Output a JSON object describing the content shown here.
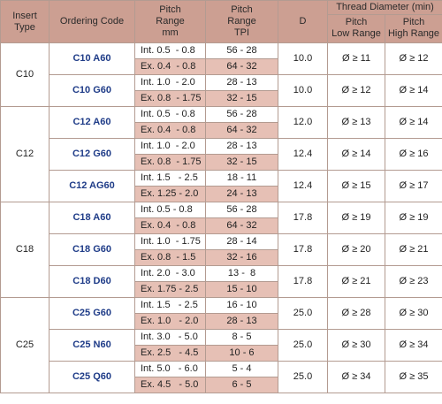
{
  "headers": {
    "insert_type": [
      "Insert",
      "Type"
    ],
    "ordering_code": "Ordering Code",
    "pitch_range": [
      "Pitch",
      "Range",
      "mm"
    ],
    "pitch_tpi": [
      "Pitch",
      "Range",
      "TPI"
    ],
    "d": "D",
    "thread_diameter": "Thread Diameter (min)",
    "pitch_low": [
      "Pitch",
      "Low Range"
    ],
    "pitch_high": [
      "Pitch",
      "High Range"
    ]
  },
  "groups": [
    {
      "type": "C10",
      "rows": [
        {
          "code": "C10 A60",
          "d": "10.0",
          "low": "Ø ≥ 11",
          "high": "Ø ≥ 12",
          "int": {
            "mm": "Int. 0.5  - 0.8",
            "tpi": "56 - 28"
          },
          "ex": {
            "mm": "Ex. 0.4  - 0.8",
            "tpi": "64 - 32"
          }
        },
        {
          "code": "C10 G60",
          "d": "10.0",
          "low": "Ø ≥ 12",
          "high": "Ø ≥ 14",
          "int": {
            "mm": "Int. 1.0  - 2.0",
            "tpi": "28 - 13"
          },
          "ex": {
            "mm": "Ex. 0.8  - 1.75",
            "tpi": "32 - 15"
          }
        }
      ]
    },
    {
      "type": "C12",
      "rows": [
        {
          "code": "C12 A60",
          "d": "12.0",
          "low": "Ø ≥ 13",
          "high": "Ø ≥ 14",
          "int": {
            "mm": "Int. 0.5  - 0.8",
            "tpi": "56 - 28"
          },
          "ex": {
            "mm": "Ex. 0.4  - 0.8",
            "tpi": "64 - 32"
          }
        },
        {
          "code": "C12 G60",
          "d": "12.4",
          "low": "Ø ≥ 14",
          "high": "Ø ≥ 16",
          "int": {
            "mm": "Int. 1.0  - 2.0",
            "tpi": "28 - 13"
          },
          "ex": {
            "mm": "Ex. 0.8  - 1.75",
            "tpi": "32 - 15"
          }
        },
        {
          "code": "C12 AG60",
          "d": "12.4",
          "low": "Ø ≥ 15",
          "high": "Ø ≥ 17",
          "int": {
            "mm": "Int. 1.5   - 2.5",
            "tpi": "18 - 11"
          },
          "ex": {
            "mm": "Ex. 1.25 - 2.0",
            "tpi": "24 - 13"
          }
        }
      ]
    },
    {
      "type": "C18",
      "rows": [
        {
          "code": "C18 A60",
          "d": "17.8",
          "low": "Ø ≥ 19",
          "high": "Ø ≥ 19",
          "int": {
            "mm": "Int. 0.5 - 0.8",
            "tpi": "56 - 28"
          },
          "ex": {
            "mm": "Ex. 0.4  - 0.8",
            "tpi": "64 - 32"
          }
        },
        {
          "code": "C18 G60",
          "d": "17.8",
          "low": "Ø ≥ 20",
          "high": "Ø ≥ 21",
          "int": {
            "mm": "Int. 1.0  - 1.75",
            "tpi": "28 - 14"
          },
          "ex": {
            "mm": "Ex. 0.8  - 1.5",
            "tpi": "32 - 16"
          }
        },
        {
          "code": "C18 D60",
          "d": "17.8",
          "low": "Ø ≥ 21",
          "high": "Ø ≥ 23",
          "int": {
            "mm": "Int. 2.0  - 3.0",
            "tpi": "13 -  8"
          },
          "ex": {
            "mm": "Ex. 1.75 - 2.5",
            "tpi": "15 - 10"
          }
        }
      ]
    },
    {
      "type": "C25",
      "rows": [
        {
          "code": "C25 G60",
          "d": "25.0",
          "low": "Ø ≥ 28",
          "high": "Ø ≥ 30",
          "int": {
            "mm": "Int. 1.5   - 2.5",
            "tpi": "16 - 10"
          },
          "ex": {
            "mm": "Ex. 1.0   - 2.0",
            "tpi": "28 - 13"
          }
        },
        {
          "code": "C25 N60",
          "d": "25.0",
          "low": "Ø ≥ 30",
          "high": "Ø ≥ 34",
          "int": {
            "mm": "Int. 3.0   - 5.0",
            "tpi": "8 - 5"
          },
          "ex": {
            "mm": "Ex. 2.5   - 4.5",
            "tpi": "10 - 6"
          }
        },
        {
          "code": "C25 Q60",
          "d": "25.0",
          "low": "Ø ≥ 34",
          "high": "Ø ≥ 35",
          "int": {
            "mm": "Int. 5.0   - 6.0",
            "tpi": "5 - 4"
          },
          "ex": {
            "mm": "Ex. 4.5   - 5.0",
            "tpi": "6 - 5"
          }
        }
      ]
    }
  ]
}
